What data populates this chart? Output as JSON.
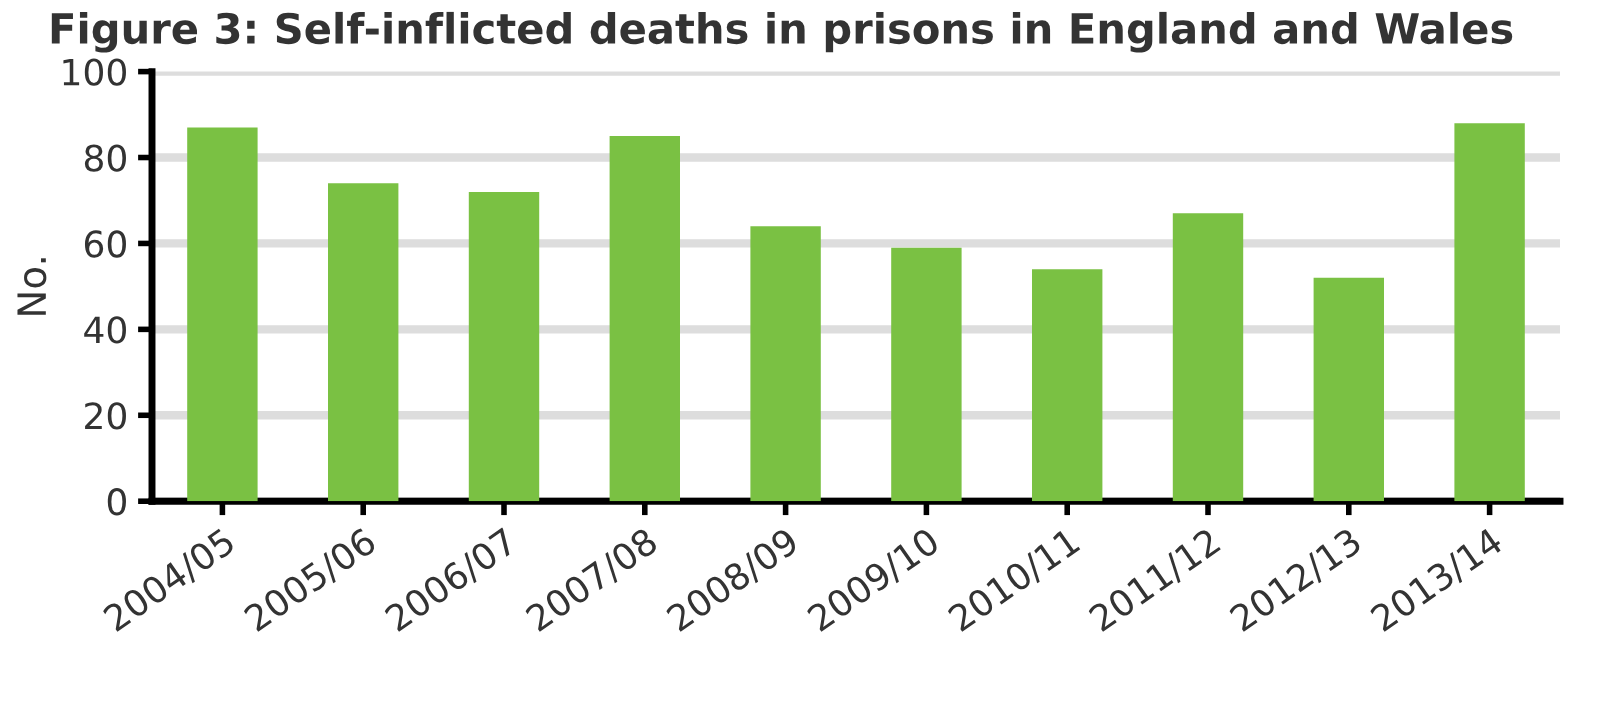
{
  "chart_data": {
    "type": "bar",
    "title": "Figure 3: Self-inflicted deaths in prisons in England and Wales",
    "ylabel": "No.",
    "categories": [
      "2004/05",
      "2005/06",
      "2006/07",
      "2007/08",
      "2008/09",
      "2009/10",
      "2010/11",
      "2011/12",
      "2012/13",
      "2013/14"
    ],
    "values": [
      87,
      74,
      72,
      85,
      64,
      59,
      54,
      67,
      52,
      88
    ],
    "color": "#7ac143",
    "ylim": [
      0,
      100
    ],
    "yticks": [
      0,
      20,
      40,
      60,
      80,
      100
    ],
    "grid": "y"
  }
}
